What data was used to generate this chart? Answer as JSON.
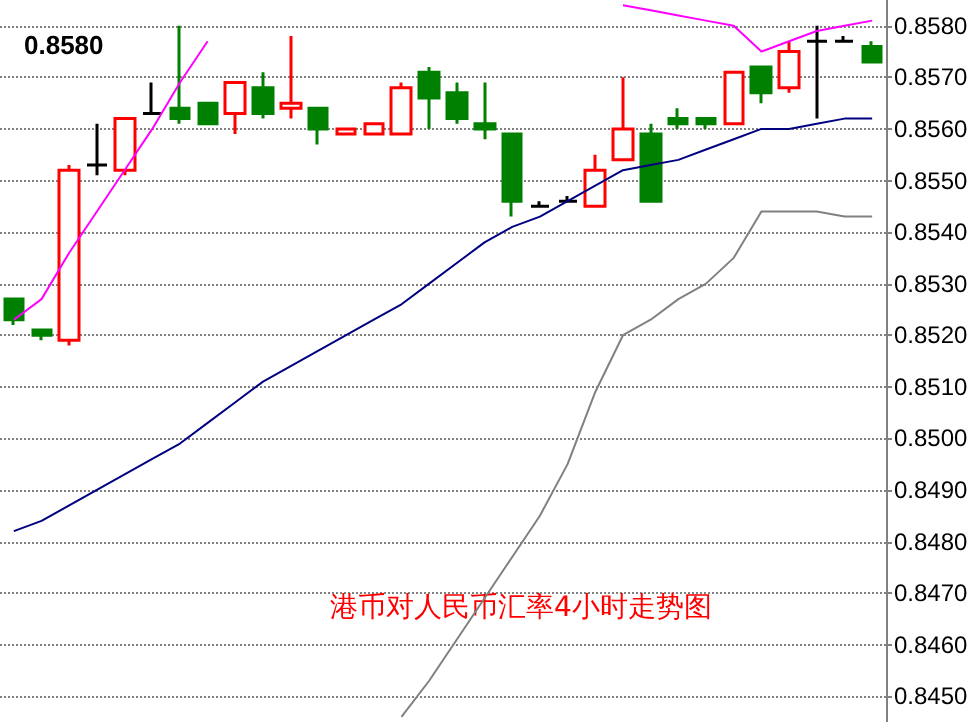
{
  "chart_data": {
    "type": "candlestick",
    "title": "港币对人民币汇率4小时走势图",
    "annotations": [
      "0.8580"
    ],
    "categories": [
      null,
      null,
      null,
      null,
      null,
      null,
      null,
      null,
      null,
      null,
      null,
      null,
      null,
      null,
      null,
      null,
      null,
      null,
      null,
      null,
      null,
      null,
      null,
      null,
      null,
      null,
      null,
      null,
      null,
      null,
      null,
      null
    ],
    "ohlc": [
      [
        0.8527,
        0.8527,
        0.8522,
        0.8523
      ],
      [
        0.8521,
        0.8521,
        0.8519,
        0.852
      ],
      [
        0.8519,
        0.8553,
        0.8518,
        0.8552
      ],
      [
        0.8553,
        0.8561,
        0.8551,
        0.8553
      ],
      [
        0.8552,
        0.8562,
        0.8551,
        0.8562
      ],
      [
        0.8563,
        0.8569,
        0.8563,
        0.8563
      ],
      [
        0.8564,
        0.858,
        0.8561,
        0.8562
      ],
      [
        0.8565,
        0.8565,
        0.8561,
        0.8561
      ],
      [
        0.8563,
        0.8569,
        0.8559,
        0.8569
      ],
      [
        0.8568,
        0.8571,
        0.8562,
        0.8563
      ],
      [
        0.8564,
        0.8578,
        0.8562,
        0.8565
      ],
      [
        0.8564,
        0.8564,
        0.8557,
        0.856
      ],
      [
        0.8559,
        0.856,
        0.8559,
        0.856
      ],
      [
        0.8559,
        0.8561,
        0.8559,
        0.8561
      ],
      [
        0.8559,
        0.8569,
        0.8559,
        0.8568
      ],
      [
        0.8571,
        0.8572,
        0.856,
        0.8566
      ],
      [
        0.8567,
        0.8569,
        0.8561,
        0.8562
      ],
      [
        0.8561,
        0.8569,
        0.8558,
        0.856
      ],
      [
        0.8559,
        0.8559,
        0.8543,
        0.8546
      ],
      [
        0.8545,
        0.8546,
        0.8545,
        0.8545
      ],
      [
        0.8546,
        0.8547,
        0.8546,
        0.8546
      ],
      [
        0.8545,
        0.8555,
        0.8545,
        0.8552
      ],
      [
        0.8554,
        0.857,
        0.8554,
        0.856
      ],
      [
        0.8559,
        0.8561,
        0.8546,
        0.8546
      ],
      [
        0.8562,
        0.8564,
        0.856,
        0.8561
      ],
      [
        0.8562,
        0.8562,
        0.856,
        0.8561
      ],
      [
        0.8561,
        0.8571,
        0.8561,
        0.8571
      ],
      [
        0.8572,
        0.8572,
        0.8565,
        0.8567
      ],
      [
        0.8568,
        0.8577,
        0.8567,
        0.8575
      ],
      [
        0.8577,
        0.858,
        0.8562,
        0.8577
      ],
      [
        0.8577,
        0.8578,
        0.8577,
        0.8577
      ],
      [
        0.8576,
        0.8577,
        0.8573,
        0.8573
      ]
    ],
    "series": [
      {
        "type": "line",
        "color": "#ff00ff",
        "values": [
          0.8523,
          0.8527,
          0.8536,
          0.8544,
          0.8552,
          0.856,
          0.8569,
          0.8577,
          null,
          null,
          null,
          null,
          null,
          null,
          null,
          null,
          null,
          null,
          null,
          null,
          null,
          null,
          0.8584,
          0.8583,
          0.8582,
          0.8581,
          0.858,
          0.8575,
          0.8577,
          0.8579,
          0.858,
          0.8581
        ]
      },
      {
        "type": "line",
        "color": "#000080",
        "values": [
          0.8482,
          0.8484,
          0.8487,
          0.849,
          0.8493,
          0.8496,
          0.8499,
          0.8503,
          0.8507,
          0.8511,
          0.8514,
          0.8517,
          0.852,
          0.8523,
          0.8526,
          0.853,
          0.8534,
          0.8538,
          0.8541,
          0.8543,
          0.8546,
          0.8549,
          0.8552,
          0.8553,
          0.8554,
          0.8556,
          0.8558,
          0.856,
          0.856,
          0.8561,
          0.8562,
          0.8562
        ]
      },
      {
        "type": "line",
        "color": "#808080",
        "values": [
          null,
          null,
          null,
          null,
          null,
          null,
          null,
          null,
          null,
          null,
          null,
          null,
          null,
          null,
          0.8446,
          0.8453,
          0.8461,
          0.8469,
          0.8477,
          0.8485,
          0.8495,
          0.8509,
          0.852,
          0.8523,
          0.8527,
          0.853,
          0.8535,
          0.8544,
          0.8544,
          0.8544,
          0.8543,
          0.8543
        ]
      }
    ],
    "ylim": [
      0.8445,
      0.8585
    ],
    "yticks": [
      {
        "value": 0.845,
        "label": "0.8450"
      },
      {
        "value": 0.846,
        "label": "0.8460"
      },
      {
        "value": 0.847,
        "label": "0.8470"
      },
      {
        "value": 0.848,
        "label": "0.8480"
      },
      {
        "value": 0.849,
        "label": "0.8490"
      },
      {
        "value": 0.85,
        "label": "0.8500"
      },
      {
        "value": 0.851,
        "label": "0.8510"
      },
      {
        "value": 0.852,
        "label": "0.8520"
      },
      {
        "value": 0.853,
        "label": "0.8530"
      },
      {
        "value": 0.854,
        "label": "0.8540"
      },
      {
        "value": 0.855,
        "label": "0.8550"
      },
      {
        "value": 0.856,
        "label": "0.8560"
      },
      {
        "value": 0.857,
        "label": "0.8570"
      },
      {
        "value": 0.858,
        "label": "0.8580"
      }
    ],
    "grid": "y",
    "tick_labels": "y"
  }
}
